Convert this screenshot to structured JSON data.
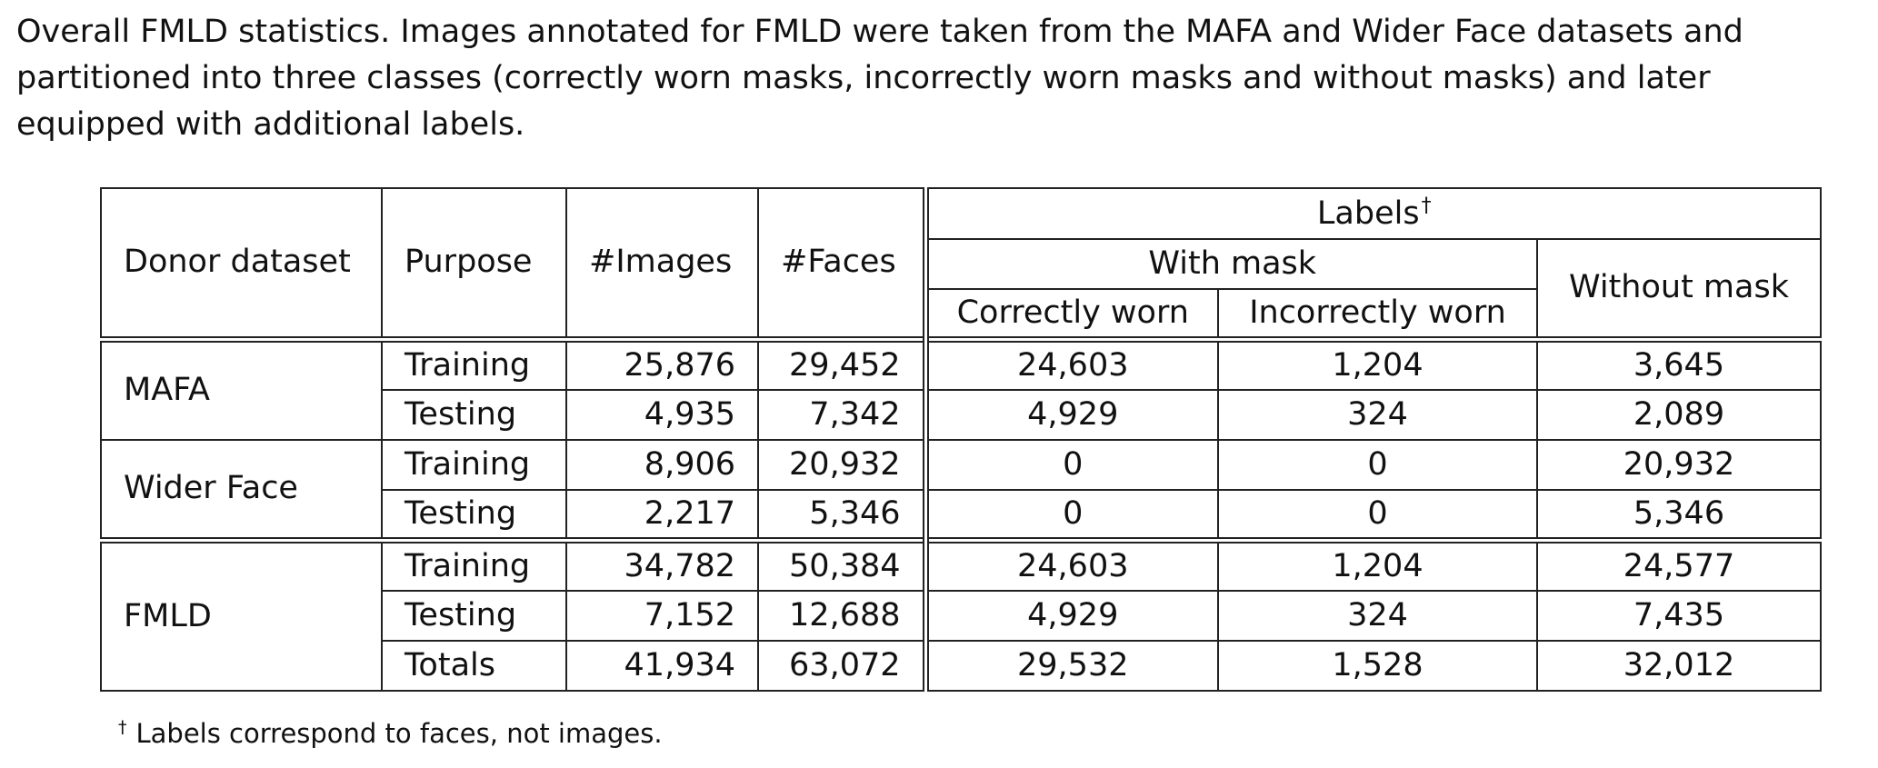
{
  "caption": "Overall FMLD statistics. Images annotated for FMLD were taken from the MAFA and Wider Face datasets and partitioned into three classes (correctly worn masks, incorrectly worn masks and without masks) and later equipped with additional labels.",
  "table": {
    "headers": {
      "donor_dataset": "Donor dataset",
      "purpose": "Purpose",
      "images": "#Images",
      "faces": "#Faces",
      "labels": "Labels",
      "labels_mark": "†",
      "with_mask": "With mask",
      "without_mask": "Without mask",
      "correctly_worn": "Correctly worn",
      "incorrectly_worn": "Incorrectly worn"
    },
    "groups": [
      {
        "dataset": "MAFA",
        "rows": [
          {
            "purpose": "Training",
            "images": "25,876",
            "faces": "29,452",
            "correct": "24,603",
            "incorrect": "1,204",
            "without": "3,645"
          },
          {
            "purpose": "Testing",
            "images": "4,935",
            "faces": "7,342",
            "correct": "4,929",
            "incorrect": "324",
            "without": "2,089"
          }
        ]
      },
      {
        "dataset": "Wider Face",
        "rows": [
          {
            "purpose": "Training",
            "images": "8,906",
            "faces": "20,932",
            "correct": "0",
            "incorrect": "0",
            "without": "20,932"
          },
          {
            "purpose": "Testing",
            "images": "2,217",
            "faces": "5,346",
            "correct": "0",
            "incorrect": "0",
            "without": "5,346"
          }
        ]
      },
      {
        "dataset": "FMLD",
        "rows": [
          {
            "purpose": "Training",
            "images": "34,782",
            "faces": "50,384",
            "correct": "24,603",
            "incorrect": "1,204",
            "without": "24,577"
          },
          {
            "purpose": "Testing",
            "images": "7,152",
            "faces": "12,688",
            "correct": "4,929",
            "incorrect": "324",
            "without": "7,435"
          },
          {
            "purpose": "Totals",
            "images": "41,934",
            "faces": "63,072",
            "correct": "29,532",
            "incorrect": "1,528",
            "without": "32,012"
          }
        ]
      }
    ]
  },
  "footnote": {
    "mark": "†",
    "text": "Labels correspond to faces, not images."
  }
}
